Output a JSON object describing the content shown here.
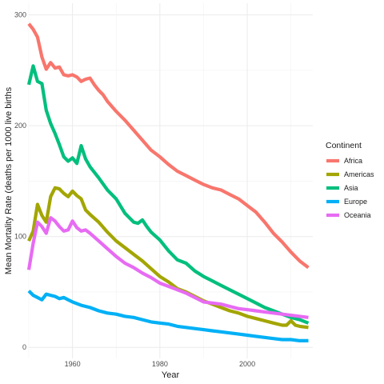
{
  "chart_data": {
    "type": "line",
    "title": "",
    "xlabel": "Year",
    "ylabel": "Mean Mortality Rate (deaths per 1000 live births",
    "xlim": [
      1950,
      2015
    ],
    "ylim": [
      0,
      300
    ],
    "x_ticks": [
      1960,
      1980,
      2000
    ],
    "y_ticks": [
      0,
      100,
      200,
      300
    ],
    "x_tick_labels": [
      "1960",
      "1980",
      "2000"
    ],
    "y_tick_labels": [
      "0",
      "100",
      "200",
      "300"
    ],
    "grid": true,
    "legend": {
      "title": "Continent",
      "position": "right"
    },
    "series": [
      {
        "name": "Africa",
        "color": "#F8766D",
        "x": [
          1950,
          1951,
          1952,
          1953,
          1954,
          1955,
          1956,
          1957,
          1958,
          1959,
          1960,
          1961,
          1962,
          1963,
          1964,
          1965,
          1966,
          1967,
          1968,
          1970,
          1972,
          1974,
          1976,
          1978,
          1980,
          1982,
          1984,
          1986,
          1988,
          1990,
          1992,
          1994,
          1996,
          1998,
          2000,
          2002,
          2004,
          2006,
          2008,
          2010,
          2012,
          2014
        ],
        "values": [
          292,
          287,
          280,
          262,
          251,
          257,
          252,
          253,
          246,
          245,
          246,
          244,
          240,
          242,
          243,
          237,
          232,
          228,
          222,
          213,
          205,
          196,
          187,
          178,
          172,
          165,
          159,
          155,
          151,
          147,
          144,
          142,
          138,
          134,
          128,
          122,
          113,
          103,
          95,
          86,
          78,
          72
        ]
      },
      {
        "name": "Americas",
        "color": "#A3A500",
        "x": [
          1950,
          1951,
          1952,
          1953,
          1954,
          1955,
          1956,
          1957,
          1958,
          1959,
          1960,
          1961,
          1962,
          1963,
          1964,
          1966,
          1968,
          1970,
          1972,
          1974,
          1976,
          1978,
          1980,
          1982,
          1984,
          1986,
          1988,
          1990,
          1992,
          1994,
          1996,
          1998,
          2000,
          2002,
          2004,
          2006,
          2008,
          2009,
          2010,
          2011,
          2012,
          2014
        ],
        "values": [
          96,
          105,
          129,
          119,
          113,
          136,
          144,
          143,
          139,
          136,
          141,
          137,
          134,
          124,
          120,
          113,
          104,
          96,
          90,
          84,
          78,
          71,
          64,
          59,
          53,
          50,
          46,
          42,
          39,
          36,
          33,
          31,
          28,
          26,
          24,
          22,
          20,
          20,
          24,
          20,
          19,
          18
        ]
      },
      {
        "name": "Asia",
        "color": "#00BF7D",
        "x": [
          1950,
          1951,
          1952,
          1953,
          1954,
          1955,
          1956,
          1957,
          1958,
          1959,
          1960,
          1961,
          1962,
          1963,
          1964,
          1966,
          1968,
          1970,
          1972,
          1974,
          1975,
          1976,
          1977,
          1978,
          1980,
          1982,
          1984,
          1986,
          1988,
          1990,
          1992,
          1994,
          1996,
          1998,
          2000,
          2002,
          2004,
          2006,
          2008,
          2010,
          2012,
          2014
        ],
        "values": [
          237,
          254,
          240,
          238,
          214,
          202,
          193,
          183,
          172,
          168,
          171,
          166,
          182,
          170,
          163,
          153,
          142,
          134,
          121,
          113,
          112,
          115,
          109,
          104,
          97,
          87,
          79,
          76,
          69,
          64,
          60,
          56,
          52,
          48,
          44,
          40,
          36,
          33,
          30,
          27,
          25,
          22
        ]
      },
      {
        "name": "Europe",
        "color": "#00B0F6",
        "x": [
          1950,
          1951,
          1952,
          1953,
          1954,
          1955,
          1956,
          1957,
          1958,
          1959,
          1960,
          1962,
          1964,
          1966,
          1968,
          1970,
          1972,
          1974,
          1976,
          1978,
          1980,
          1982,
          1984,
          1986,
          1988,
          1990,
          1992,
          1994,
          1996,
          1998,
          2000,
          2002,
          2004,
          2006,
          2008,
          2010,
          2012,
          2014
        ],
        "values": [
          51,
          47,
          45,
          43,
          48,
          47,
          46,
          44,
          45,
          43,
          41,
          38,
          36,
          33,
          31,
          30,
          28,
          27,
          25,
          23,
          22,
          21,
          19,
          18,
          17,
          16,
          15,
          14,
          13,
          12,
          11,
          10,
          9,
          8,
          7,
          7,
          6,
          6
        ]
      },
      {
        "name": "Oceania",
        "color": "#E76BF3",
        "x": [
          1950,
          1951,
          1952,
          1953,
          1954,
          1955,
          1956,
          1957,
          1958,
          1959,
          1960,
          1961,
          1962,
          1963,
          1964,
          1966,
          1968,
          1970,
          1972,
          1974,
          1976,
          1978,
          1980,
          1982,
          1984,
          1986,
          1988,
          1990,
          1992,
          1994,
          1996,
          1998,
          2000,
          2002,
          2004,
          2006,
          2008,
          2010,
          2012,
          2014
        ],
        "values": [
          70,
          94,
          113,
          109,
          103,
          117,
          114,
          109,
          105,
          106,
          114,
          108,
          105,
          106,
          103,
          96,
          89,
          82,
          76,
          72,
          67,
          63,
          58,
          55,
          52,
          49,
          45,
          41,
          40,
          39,
          37,
          35,
          34,
          33,
          32,
          31,
          30,
          29,
          28,
          27
        ]
      }
    ]
  }
}
